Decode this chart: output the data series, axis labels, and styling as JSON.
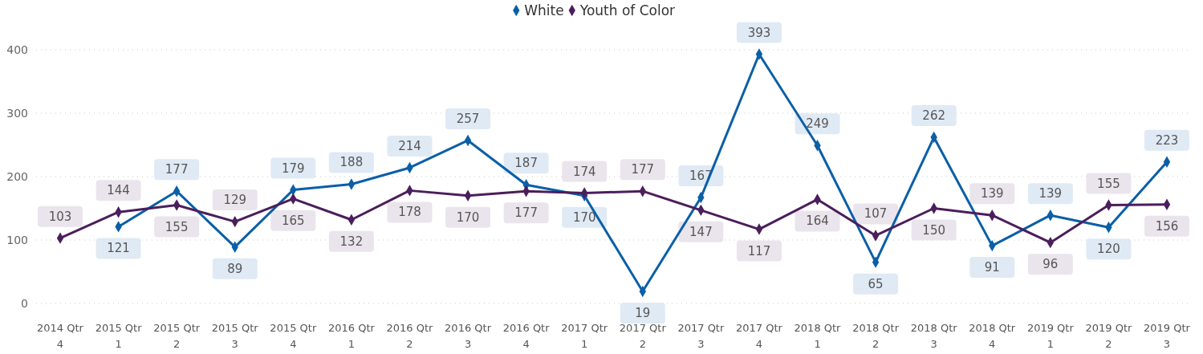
{
  "chart_data": {
    "type": "line",
    "categories": [
      "2014 Qtr 4",
      "2015 Qtr 1",
      "2015 Qtr 2",
      "2015 Qtr 3",
      "2015 Qtr 4",
      "2016 Qtr 1",
      "2016 Qtr 2",
      "2016 Qtr 3",
      "2016 Qtr 4",
      "2017 Qtr 1",
      "2017 Qtr 2",
      "2017 Qtr 3",
      "2017 Qtr 4",
      "2018 Qtr 1",
      "2018 Qtr 2",
      "2018 Qtr 3",
      "2018 Qtr 4",
      "2019 Qtr 1",
      "2019 Qtr 2",
      "2019 Qtr 3"
    ],
    "series": [
      {
        "name": "White",
        "color": "#0a5fa8",
        "values": [
          null,
          121,
          177,
          89,
          179,
          188,
          214,
          257,
          187,
          170,
          19,
          167,
          393,
          249,
          65,
          262,
          91,
          139,
          120,
          223
        ]
      },
      {
        "name": "Youth of Color",
        "color": "#4b1e5c",
        "values": [
          103,
          144,
          155,
          129,
          165,
          132,
          178,
          170,
          177,
          174,
          177,
          147,
          117,
          164,
          107,
          150,
          139,
          96,
          155,
          156
        ]
      }
    ],
    "ylim": [
      0,
      400
    ],
    "yticks": [
      0,
      100,
      200,
      300,
      400
    ],
    "grid": "y",
    "legend": "top",
    "marker": "diamond",
    "line_style": "solid",
    "data_labels": true
  }
}
